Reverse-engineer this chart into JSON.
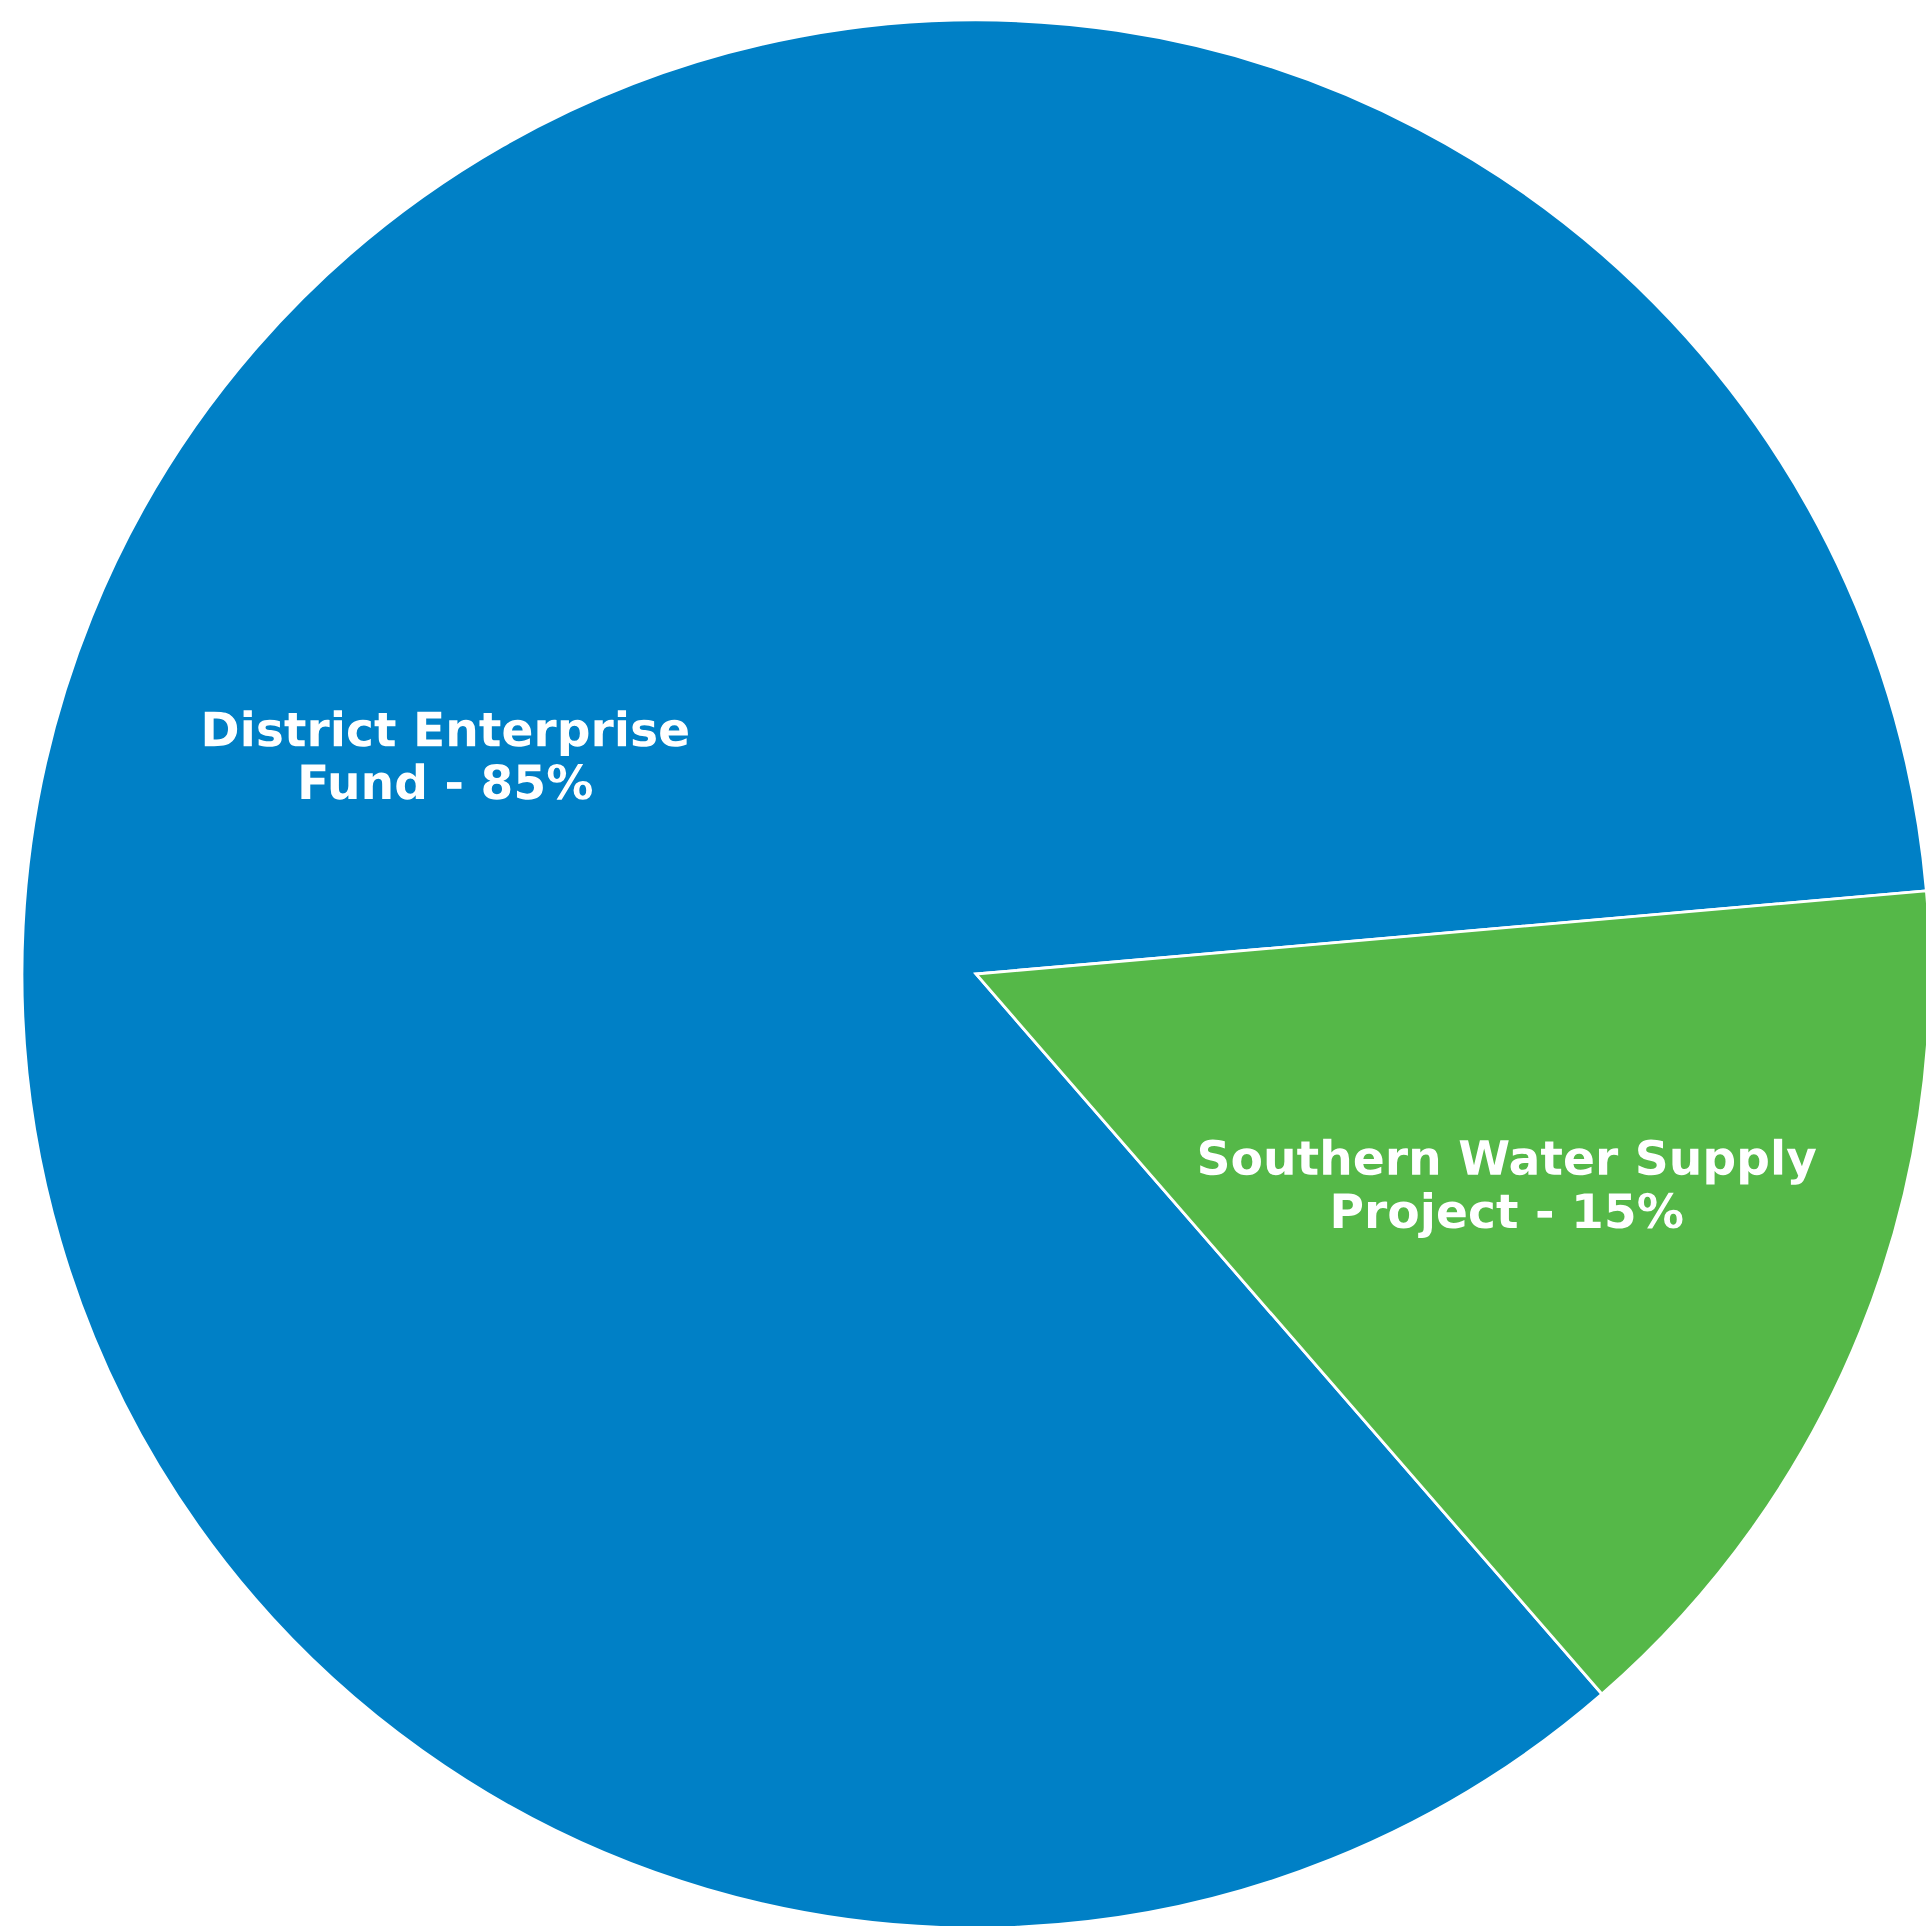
{
  "chart_data": {
    "type": "pie",
    "categories": [
      "District Enterprise\nFund",
      "Southern Water Supply\nProject"
    ],
    "values": [
      85,
      15
    ],
    "value_labels": [
      "85%",
      "15%"
    ],
    "colors": [
      "#0080c6",
      "#55b848"
    ],
    "legend": false
  }
}
